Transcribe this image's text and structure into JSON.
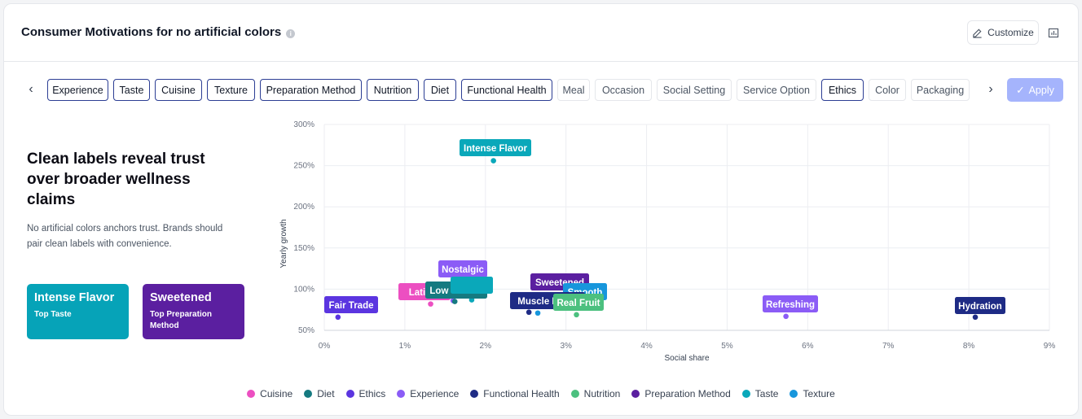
{
  "header": {
    "title": "Consumer Motivations for no artificial colors",
    "customize_label": "Customize"
  },
  "filters": {
    "chips": [
      {
        "label": "Experience",
        "selected": true
      },
      {
        "label": "Taste",
        "selected": true
      },
      {
        "label": "Cuisine",
        "selected": true
      },
      {
        "label": "Texture",
        "selected": true
      },
      {
        "label": "Preparation Method",
        "selected": true
      },
      {
        "label": "Nutrition",
        "selected": true
      },
      {
        "label": "Diet",
        "selected": true
      },
      {
        "label": "Functional Health",
        "selected": true
      },
      {
        "label": "Meal",
        "selected": false
      },
      {
        "label": "Occasion",
        "selected": false
      },
      {
        "label": "Social Setting",
        "selected": false
      },
      {
        "label": "Service Option",
        "selected": false
      },
      {
        "label": "Ethics",
        "selected": true
      },
      {
        "label": "Color",
        "selected": false
      },
      {
        "label": "Packaging",
        "selected": false
      }
    ],
    "apply_label": "Apply"
  },
  "insight": {
    "headline": "Clean labels reveal trust over broader wellness claims",
    "description": "No artificial colors anchors trust. Brands should pair clean labels with convenience.",
    "tiles": [
      {
        "value": "Intense Flavor",
        "caption": "Top Taste",
        "color": "#06a3b8"
      },
      {
        "value": "Sweetened",
        "caption": "Top Preparation Method",
        "color": "#5b1fa0"
      }
    ]
  },
  "chart_data": {
    "type": "scatter",
    "xlabel": "Social share",
    "ylabel": "Yearly growth",
    "xlim": [
      0,
      9
    ],
    "ylim": [
      50,
      300
    ],
    "x_unit": "%",
    "y_unit": "%",
    "x_ticks": [
      0,
      1,
      2,
      3,
      4,
      5,
      6,
      7,
      8,
      9
    ],
    "y_ticks": [
      50,
      100,
      150,
      200,
      250,
      300
    ],
    "grid": true,
    "legend_position": "bottom",
    "categories": [
      {
        "name": "Cuisine",
        "color": "#ec4fc1"
      },
      {
        "name": "Diet",
        "color": "#157a80"
      },
      {
        "name": "Ethics",
        "color": "#5b35e0"
      },
      {
        "name": "Experience",
        "color": "#8b5cf6"
      },
      {
        "name": "Functional Health",
        "color": "#1e2b85"
      },
      {
        "name": "Nutrition",
        "color": "#4cc07f"
      },
      {
        "name": "Preparation Method",
        "color": "#5b1fa0"
      },
      {
        "name": "Taste",
        "color": "#0aa8ba"
      },
      {
        "name": "Texture",
        "color": "#1796dc"
      }
    ],
    "points": [
      {
        "label": "Intense Flavor",
        "category": "Taste",
        "x": 2.1,
        "y": 256
      },
      {
        "label": "Nostalgic",
        "category": "Experience",
        "x": 1.6,
        "y": 86
      },
      {
        "label": "Latin A",
        "category": "Cuisine",
        "x": 1.32,
        "y": 82
      },
      {
        "label": "Low Calorie",
        "category": "Diet",
        "x": 1.62,
        "y": 85
      },
      {
        "label": "",
        "category": "Taste",
        "x": 1.83,
        "y": 87
      },
      {
        "label": "Fair Trade",
        "category": "Ethics",
        "x": 0.17,
        "y": 66
      },
      {
        "label": "Sweetened",
        "category": "Preparation Method",
        "x": 2.65,
        "y": 88
      },
      {
        "label": "Smooth",
        "category": "Texture",
        "x": 2.65,
        "y": 71
      },
      {
        "label": "Muscle Funct",
        "category": "Functional Health",
        "x": 2.54,
        "y": 72
      },
      {
        "label": "Real Fruit",
        "category": "Nutrition",
        "x": 3.13,
        "y": 69
      },
      {
        "label": "Refreshing",
        "category": "Experience",
        "x": 5.73,
        "y": 67
      },
      {
        "label": "Hydration",
        "category": "Functional Health",
        "x": 8.08,
        "y": 66
      }
    ]
  }
}
